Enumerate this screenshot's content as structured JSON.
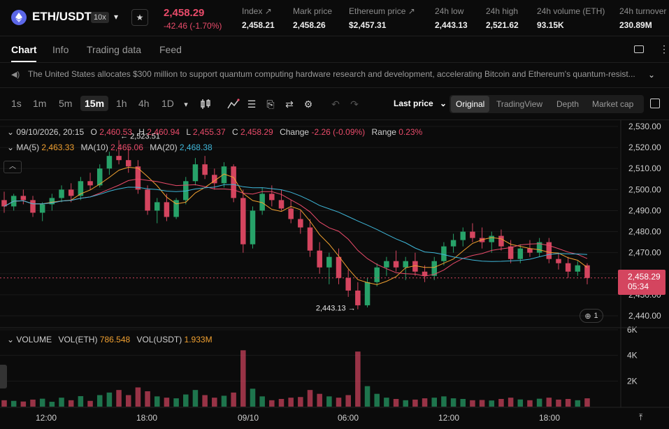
{
  "header": {
    "pair": "ETH/USDT",
    "leverage": "10x",
    "last_price": "2,458.29",
    "change": "-42.46 (-1.70%)",
    "stats": [
      {
        "label": "Index",
        "value": "2,458.21",
        "link": true
      },
      {
        "label": "Mark price",
        "value": "2,458.26",
        "link": false
      },
      {
        "label": "Ethereum price",
        "value": "$2,457.31",
        "link": true
      },
      {
        "label": "24h low",
        "value": "2,443.13",
        "link": false
      },
      {
        "label": "24h high",
        "value": "2,521.62",
        "link": false
      },
      {
        "label": "24h volume (ETH)",
        "value": "93.15K",
        "link": false
      },
      {
        "label": "24h turnover",
        "value": "230.89M",
        "link": false
      }
    ]
  },
  "tabs": [
    "Chart",
    "Info",
    "Trading data",
    "Feed"
  ],
  "news": {
    "headline": "The United States allocates $300 million to support quantum computing hardware research and development, accelerating Bitcoin and Ethereum's quantum-resist..."
  },
  "toolbar": {
    "timeframes": [
      "1s",
      "1m",
      "5m",
      "15m",
      "1h",
      "4h",
      "1D"
    ],
    "active_timeframe": "15m",
    "price_type": "Last price",
    "views": [
      "Original",
      "TradingView",
      "Depth",
      "Market cap"
    ],
    "active_view": "Original"
  },
  "ohlc": {
    "date": "09/10/2026, 20:15",
    "open": "2,460.53",
    "high": "2,460.94",
    "low": "2,455.37",
    "close": "2,458.29",
    "change": "-2.26 (-0.09%)",
    "range": "0.23%",
    "labels": {
      "o": "O",
      "h": "H",
      "l": "L",
      "c": "C",
      "change": "Change",
      "range": "Range"
    }
  },
  "ma": {
    "ma5_label": "MA(5)",
    "ma5": "2,463.33",
    "ma10_label": "MA(10)",
    "ma10": "2,465.06",
    "ma20_label": "MA(20)",
    "ma20": "2,468.38",
    "colors": {
      "ma5": "#f0a030",
      "ma10": "#e94b6a",
      "ma20": "#3fb7d9"
    }
  },
  "volume_legend": {
    "label": "VOLUME",
    "eth_label": "VOL(ETH)",
    "eth": "786.548",
    "usdt_label": "VOL(USDT)",
    "usdt": "1.933M"
  },
  "price_tag": {
    "price": "2,458.29",
    "countdown": "05:34"
  },
  "indicator_count": "1",
  "colors": {
    "up": "#27a269",
    "down": "#d4455f",
    "bg": "#0b0b0b"
  },
  "chart_data": {
    "type": "candlestick",
    "price_axis": [
      "2,530.00",
      "2,520.00",
      "2,510.00",
      "2,500.00",
      "2,490.00",
      "2,480.00",
      "2,470.00",
      "2,460.00",
      "2,450.00",
      "2,440.00"
    ],
    "ylim": [
      2440,
      2530
    ],
    "volume_axis": [
      "6K",
      "4K",
      "2K"
    ],
    "volume_max": 6000,
    "time_axis": [
      "12:00",
      "18:00",
      "09/10",
      "06:00",
      "12:00",
      "18:00"
    ],
    "high_marker": "← 2,523.51",
    "low_marker": "2,443.13 →",
    "candles": [
      {
        "o": 2495,
        "h": 2499,
        "l": 2489,
        "c": 2492,
        "v": 500
      },
      {
        "o": 2492,
        "h": 2498,
        "l": 2490,
        "c": 2497,
        "v": 450
      },
      {
        "o": 2497,
        "h": 2500,
        "l": 2493,
        "c": 2495,
        "v": 400
      },
      {
        "o": 2495,
        "h": 2497,
        "l": 2487,
        "c": 2489,
        "v": 550
      },
      {
        "o": 2489,
        "h": 2494,
        "l": 2485,
        "c": 2493,
        "v": 620
      },
      {
        "o": 2493,
        "h": 2498,
        "l": 2490,
        "c": 2496,
        "v": 380
      },
      {
        "o": 2496,
        "h": 2502,
        "l": 2494,
        "c": 2500,
        "v": 700
      },
      {
        "o": 2500,
        "h": 2503,
        "l": 2494,
        "c": 2497,
        "v": 500
      },
      {
        "o": 2497,
        "h": 2506,
        "l": 2495,
        "c": 2504,
        "v": 820
      },
      {
        "o": 2504,
        "h": 2508,
        "l": 2500,
        "c": 2502,
        "v": 450
      },
      {
        "o": 2502,
        "h": 2512,
        "l": 2501,
        "c": 2510,
        "v": 900
      },
      {
        "o": 2510,
        "h": 2518,
        "l": 2507,
        "c": 2516,
        "v": 1100
      },
      {
        "o": 2516,
        "h": 2523.5,
        "l": 2512,
        "c": 2514,
        "v": 1300
      },
      {
        "o": 2514,
        "h": 2520,
        "l": 2508,
        "c": 2511,
        "v": 900
      },
      {
        "o": 2511,
        "h": 2514,
        "l": 2498,
        "c": 2500,
        "v": 1500
      },
      {
        "o": 2500,
        "h": 2502,
        "l": 2488,
        "c": 2490,
        "v": 1200
      },
      {
        "o": 2490,
        "h": 2496,
        "l": 2484,
        "c": 2494,
        "v": 800
      },
      {
        "o": 2494,
        "h": 2498,
        "l": 2485,
        "c": 2487,
        "v": 700
      },
      {
        "o": 2487,
        "h": 2496,
        "l": 2486,
        "c": 2495,
        "v": 650
      },
      {
        "o": 2495,
        "h": 2506,
        "l": 2493,
        "c": 2504,
        "v": 950
      },
      {
        "o": 2504,
        "h": 2515,
        "l": 2502,
        "c": 2512,
        "v": 1300
      },
      {
        "o": 2512,
        "h": 2516,
        "l": 2505,
        "c": 2507,
        "v": 900
      },
      {
        "o": 2507,
        "h": 2510,
        "l": 2500,
        "c": 2503,
        "v": 700
      },
      {
        "o": 2503,
        "h": 2513,
        "l": 2501,
        "c": 2511,
        "v": 850
      },
      {
        "o": 2511,
        "h": 2512,
        "l": 2494,
        "c": 2496,
        "v": 1100
      },
      {
        "o": 2496,
        "h": 2500,
        "l": 2470,
        "c": 2474,
        "v": 4400
      },
      {
        "o": 2474,
        "h": 2492,
        "l": 2472,
        "c": 2490,
        "v": 1400
      },
      {
        "o": 2490,
        "h": 2501,
        "l": 2488,
        "c": 2498,
        "v": 800
      },
      {
        "o": 2498,
        "h": 2502,
        "l": 2492,
        "c": 2495,
        "v": 500
      },
      {
        "o": 2495,
        "h": 2500,
        "l": 2490,
        "c": 2491,
        "v": 600
      },
      {
        "o": 2491,
        "h": 2495,
        "l": 2484,
        "c": 2486,
        "v": 700
      },
      {
        "o": 2486,
        "h": 2490,
        "l": 2479,
        "c": 2482,
        "v": 750
      },
      {
        "o": 2482,
        "h": 2486,
        "l": 2468,
        "c": 2471,
        "v": 1300
      },
      {
        "o": 2471,
        "h": 2475,
        "l": 2460,
        "c": 2463,
        "v": 1000
      },
      {
        "o": 2463,
        "h": 2470,
        "l": 2455,
        "c": 2468,
        "v": 800
      },
      {
        "o": 2468,
        "h": 2472,
        "l": 2455,
        "c": 2458,
        "v": 700
      },
      {
        "o": 2458,
        "h": 2462,
        "l": 2449,
        "c": 2452,
        "v": 900
      },
      {
        "o": 2452,
        "h": 2456,
        "l": 2443.1,
        "c": 2445,
        "v": 4300
      },
      {
        "o": 2445,
        "h": 2458,
        "l": 2444,
        "c": 2456,
        "v": 1600
      },
      {
        "o": 2456,
        "h": 2465,
        "l": 2454,
        "c": 2463,
        "v": 1000
      },
      {
        "o": 2463,
        "h": 2468,
        "l": 2459,
        "c": 2466,
        "v": 700
      },
      {
        "o": 2466,
        "h": 2471,
        "l": 2461,
        "c": 2463,
        "v": 600
      },
      {
        "o": 2463,
        "h": 2468,
        "l": 2457,
        "c": 2466,
        "v": 500
      },
      {
        "o": 2466,
        "h": 2470,
        "l": 2459,
        "c": 2461,
        "v": 550
      },
      {
        "o": 2461,
        "h": 2464,
        "l": 2456,
        "c": 2459,
        "v": 650
      },
      {
        "o": 2459,
        "h": 2468,
        "l": 2457,
        "c": 2466,
        "v": 700
      },
      {
        "o": 2466,
        "h": 2475,
        "l": 2464,
        "c": 2473,
        "v": 800
      },
      {
        "o": 2473,
        "h": 2479,
        "l": 2470,
        "c": 2476,
        "v": 650
      },
      {
        "o": 2476,
        "h": 2482,
        "l": 2473,
        "c": 2480,
        "v": 600
      },
      {
        "o": 2480,
        "h": 2484,
        "l": 2475,
        "c": 2477,
        "v": 500
      },
      {
        "o": 2477,
        "h": 2482,
        "l": 2472,
        "c": 2475,
        "v": 520
      },
      {
        "o": 2475,
        "h": 2480,
        "l": 2470,
        "c": 2478,
        "v": 480
      },
      {
        "o": 2478,
        "h": 2481,
        "l": 2471,
        "c": 2473,
        "v": 600
      },
      {
        "o": 2473,
        "h": 2476,
        "l": 2465,
        "c": 2467,
        "v": 700
      },
      {
        "o": 2467,
        "h": 2474,
        "l": 2465,
        "c": 2472,
        "v": 560
      },
      {
        "o": 2472,
        "h": 2476,
        "l": 2468,
        "c": 2470,
        "v": 500
      },
      {
        "o": 2470,
        "h": 2477,
        "l": 2468,
        "c": 2475,
        "v": 620
      },
      {
        "o": 2475,
        "h": 2477,
        "l": 2465,
        "c": 2467,
        "v": 700
      },
      {
        "o": 2467,
        "h": 2470,
        "l": 2462,
        "c": 2465,
        "v": 550
      },
      {
        "o": 2465,
        "h": 2468,
        "l": 2458,
        "c": 2461,
        "v": 600
      },
      {
        "o": 2461,
        "h": 2466,
        "l": 2459,
        "c": 2464,
        "v": 500
      },
      {
        "o": 2464,
        "h": 2465,
        "l": 2455,
        "c": 2458,
        "v": 650
      }
    ]
  }
}
